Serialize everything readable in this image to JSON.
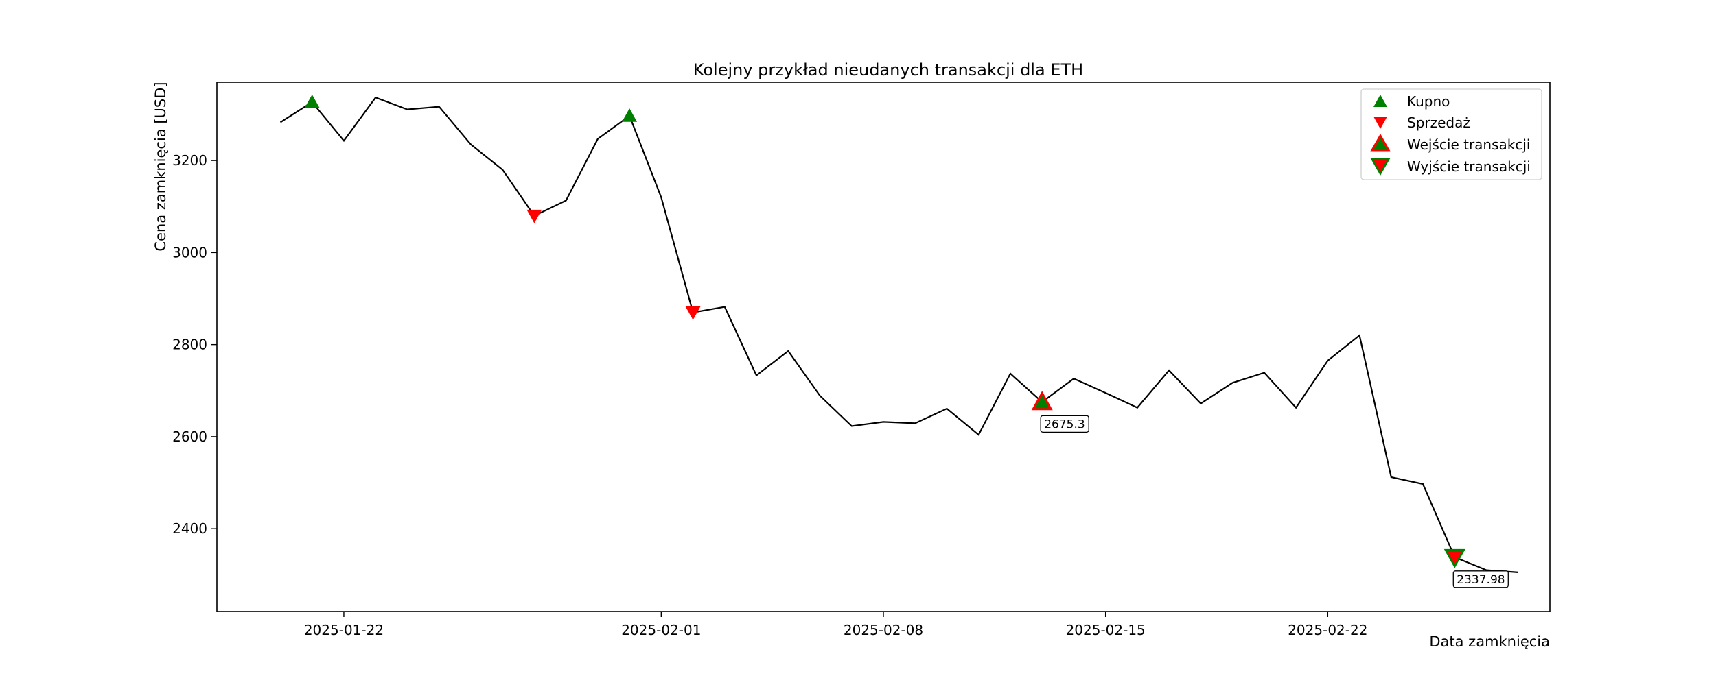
{
  "chart_data": {
    "type": "line",
    "title": "Kolejny przykład nieudanych transakcji dla ETH",
    "xlabel": "Data zamknięcia",
    "ylabel": "Cena zamknięcia [USD]",
    "x_ticks": [
      "2025-01-22",
      "2025-02-01",
      "2025-02-08",
      "2025-02-15",
      "2025-02-22"
    ],
    "y_ticks": [
      2400,
      2600,
      2800,
      3000,
      3200
    ],
    "xlim": [
      "2025-01-18",
      "2025-02-29"
    ],
    "ylim": [
      2220,
      3370
    ],
    "x": [
      "2025-01-20",
      "2025-01-21",
      "2025-01-22",
      "2025-01-23",
      "2025-01-24",
      "2025-01-25",
      "2025-01-26",
      "2025-01-27",
      "2025-01-28",
      "2025-01-29",
      "2025-01-30",
      "2025-01-31",
      "2025-02-01",
      "2025-02-02",
      "2025-02-03",
      "2025-02-04",
      "2025-02-05",
      "2025-02-06",
      "2025-02-07",
      "2025-02-08",
      "2025-02-09",
      "2025-02-10",
      "2025-02-11",
      "2025-02-12",
      "2025-02-13",
      "2025-02-14",
      "2025-02-15",
      "2025-02-16",
      "2025-02-17",
      "2025-02-18",
      "2025-02-19",
      "2025-02-20",
      "2025-02-21",
      "2025-02-22",
      "2025-02-23",
      "2025-02-24",
      "2025-02-25",
      "2025-02-26",
      "2025-02-27",
      "2025-02-28"
    ],
    "series": [
      {
        "color": "#000000",
        "values": [
          3283,
          3327,
          3243,
          3337,
          3311,
          3317,
          3235,
          3180,
          3080,
          3113,
          3247,
          3297,
          3120,
          2870,
          2882,
          2733,
          2786,
          2689,
          2623,
          2632,
          2629,
          2661,
          2604,
          2737,
          2675.3,
          2726,
          2695,
          2663,
          2744,
          2672,
          2717,
          2739,
          2663,
          2765,
          2820,
          2512,
          2497,
          2337.98,
          2310,
          2305
        ]
      }
    ],
    "buy_signals": [
      {
        "x": "2025-01-21",
        "y": 3327
      },
      {
        "x": "2025-01-31",
        "y": 3297
      }
    ],
    "sell_signals": [
      {
        "x": "2025-01-28",
        "y": 3080
      },
      {
        "x": "2025-02-02",
        "y": 2870
      }
    ],
    "trade_entries": [
      {
        "x": "2025-02-13",
        "y": 2675.3,
        "label": "2675.3"
      }
    ],
    "trade_exits": [
      {
        "x": "2025-02-26",
        "y": 2337.98,
        "label": "2337.98"
      }
    ],
    "legend": {
      "placement": "top-right",
      "entries": [
        {
          "label": "Kupno",
          "marker": "triangle-up",
          "color": "#008000"
        },
        {
          "label": "Sprzedaż",
          "marker": "triangle-down",
          "color": "#ff0000"
        },
        {
          "label": "Wejście transakcji",
          "marker": "triangle-up",
          "color": "#008000",
          "edge": "#ff0000"
        },
        {
          "label": "Wyjście transakcji",
          "marker": "triangle-down",
          "color": "#ff0000",
          "edge": "#008000"
        }
      ]
    },
    "colors": {
      "buy": "#008000",
      "sell": "#ff0000",
      "line": "#000000"
    },
    "grid": false
  }
}
